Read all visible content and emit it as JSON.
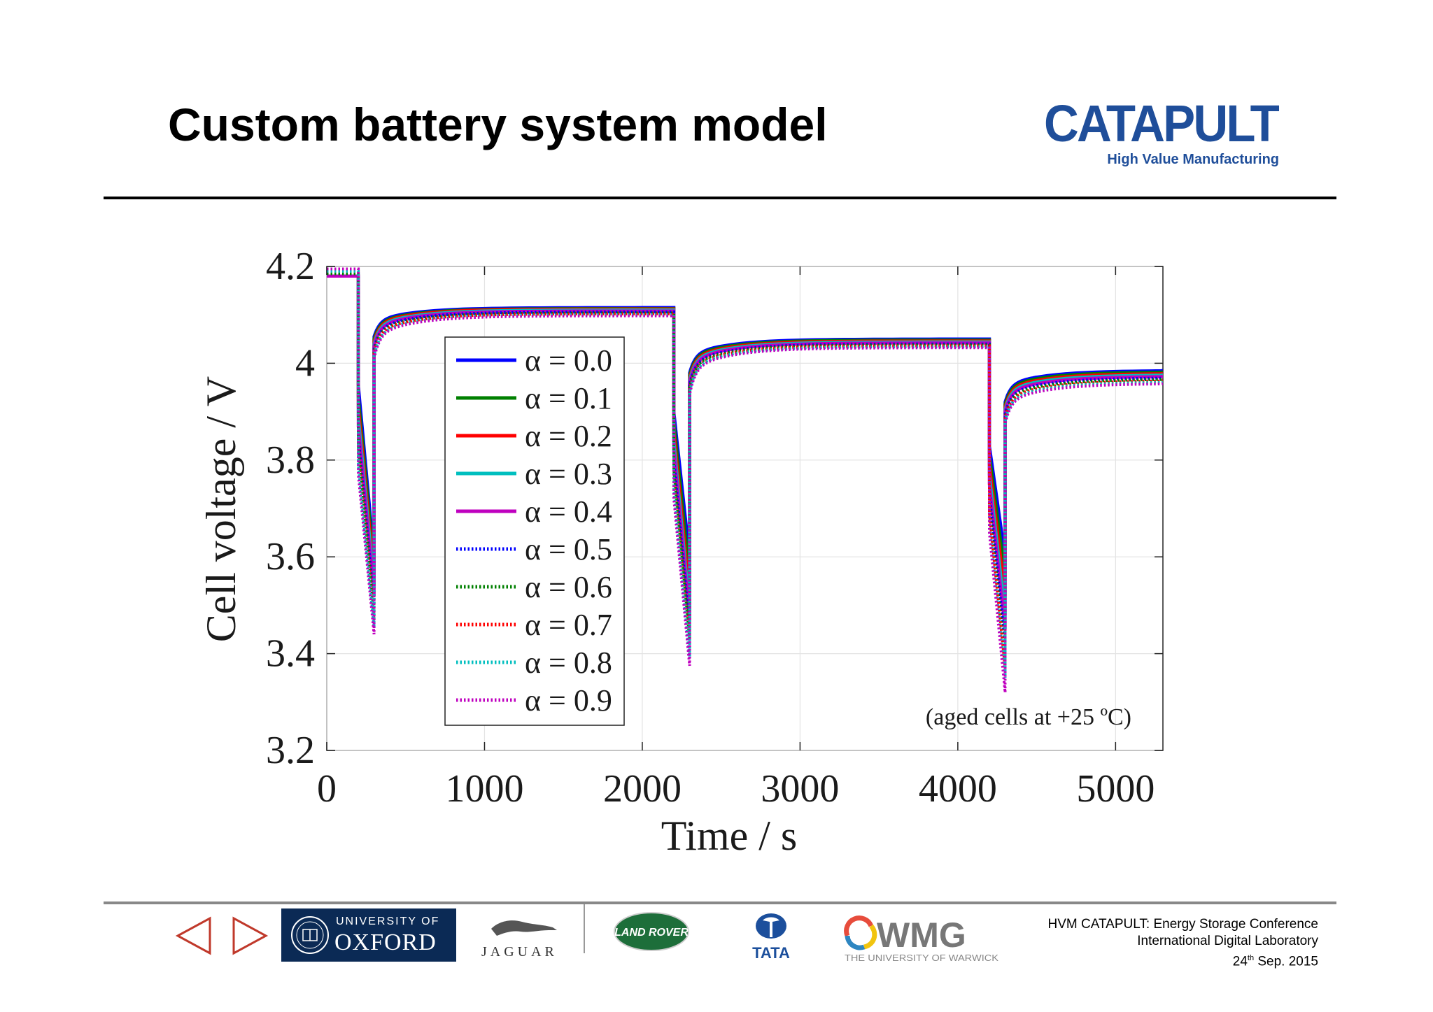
{
  "slide": {
    "title": "Custom battery system model"
  },
  "logos": {
    "catapult_word": "CATAPULT",
    "catapult_tagline": "High Value Manufacturing",
    "oxford_line1": "UNIVERSITY OF",
    "oxford_line2": "OXFORD",
    "jaguar": "JAGUAR",
    "landrover": "LAND ROVER",
    "tata": "TATA",
    "wmg": "WMG",
    "wmg_sub": "THE UNIVERSITY OF WARWICK"
  },
  "footer": {
    "line1": "HVM CATAPULT: Energy Storage Conference",
    "line2": "International Digital Laboratory",
    "date_day": "24",
    "date_suffix": "th",
    "date_rest": " Sep. 2015"
  },
  "colors": {
    "catapult_blue": "#1f4e9a",
    "oxford_navy": "#0b2a55",
    "landrover_green": "#1d6e3a",
    "tata_blue": "#1c4f9c"
  },
  "chart_data": {
    "type": "line",
    "xlabel": "Time / s",
    "ylabel": "Cell voltage / V",
    "xlim": [
      0,
      5300
    ],
    "ylim": [
      3.2,
      4.2
    ],
    "xticks": [
      0,
      1000,
      2000,
      3000,
      4000,
      5000
    ],
    "yticks": [
      3.2,
      3.4,
      3.6,
      3.8,
      4.0,
      4.2
    ],
    "grid": true,
    "legend_position": "upper-middle",
    "annotation": "(aged cells at +25 ºC)",
    "pulses": [
      {
        "start": 200,
        "end": 300
      },
      {
        "start": 2200,
        "end": 2300
      },
      {
        "start": 4200,
        "end": 4300
      }
    ],
    "series": [
      {
        "name": "α = 0.0",
        "color": "#0000ff",
        "dash": "solid",
        "pulse_start": [
          3.955,
          3.9,
          3.83
        ],
        "pulse_end": [
          3.6,
          3.6,
          3.6
        ],
        "rest_start": [
          4.055,
          3.98,
          3.92
        ],
        "rest_end": [
          4.115,
          4.05,
          3.985
        ],
        "idle": 4.18
      },
      {
        "name": "α = 0.1",
        "color": "#008000",
        "dash": "solid",
        "pulse_start": [
          3.93,
          3.88,
          3.81
        ],
        "pulse_end": [
          3.58,
          3.56,
          3.56
        ],
        "rest_start": [
          4.05,
          3.975,
          3.915
        ],
        "rest_end": [
          4.113,
          4.048,
          3.982
        ],
        "idle": 4.18
      },
      {
        "name": "α = 0.2",
        "color": "#ff0000",
        "dash": "solid",
        "pulse_start": [
          3.91,
          3.86,
          3.79
        ],
        "pulse_end": [
          3.56,
          3.52,
          3.52
        ],
        "rest_start": [
          4.045,
          3.97,
          3.91
        ],
        "rest_end": [
          4.112,
          4.046,
          3.979
        ],
        "idle": 4.18
      },
      {
        "name": "α = 0.3",
        "color": "#00bfbf",
        "dash": "solid",
        "pulse_start": [
          3.89,
          3.84,
          3.77
        ],
        "pulse_end": [
          3.54,
          3.49,
          3.48
        ],
        "rest_start": [
          4.04,
          3.965,
          3.905
        ],
        "rest_end": [
          4.11,
          4.044,
          3.976
        ],
        "idle": 4.18
      },
      {
        "name": "α = 0.4",
        "color": "#bf00bf",
        "dash": "solid",
        "pulse_start": [
          3.87,
          3.82,
          3.75
        ],
        "pulse_end": [
          3.52,
          3.47,
          3.45
        ],
        "rest_start": [
          4.035,
          3.96,
          3.9
        ],
        "rest_end": [
          4.108,
          4.042,
          3.973
        ],
        "idle": 4.18
      },
      {
        "name": "α = 0.5",
        "color": "#0000ff",
        "dash": "dotted",
        "pulse_start": [
          3.85,
          3.8,
          3.73
        ],
        "pulse_end": [
          3.5,
          3.45,
          3.42
        ],
        "rest_start": [
          4.03,
          3.955,
          3.895
        ],
        "rest_end": [
          4.106,
          4.04,
          3.97
        ],
        "idle": 4.185
      },
      {
        "name": "α = 0.6",
        "color": "#008000",
        "dash": "dotted",
        "pulse_start": [
          3.83,
          3.78,
          3.71
        ],
        "pulse_end": [
          3.48,
          3.43,
          3.39
        ],
        "rest_start": [
          4.025,
          3.95,
          3.89
        ],
        "rest_end": [
          4.104,
          4.038,
          3.967
        ],
        "idle": 4.185
      },
      {
        "name": "α = 0.7",
        "color": "#ff0000",
        "dash": "dotted",
        "pulse_start": [
          3.81,
          3.76,
          3.69
        ],
        "pulse_end": [
          3.47,
          3.41,
          3.37
        ],
        "rest_start": [
          4.02,
          3.945,
          3.885
        ],
        "rest_end": [
          4.102,
          4.036,
          3.964
        ],
        "idle": 4.19
      },
      {
        "name": "α = 0.8",
        "color": "#00bfbf",
        "dash": "dotted",
        "pulse_start": [
          3.79,
          3.74,
          3.67
        ],
        "pulse_end": [
          3.455,
          3.39,
          3.35
        ],
        "rest_start": [
          4.015,
          3.94,
          3.88
        ],
        "rest_end": [
          4.1,
          4.034,
          3.961
        ],
        "idle": 4.19
      },
      {
        "name": "α = 0.9",
        "color": "#bf00bf",
        "dash": "dotted",
        "pulse_start": [
          3.77,
          3.72,
          3.65
        ],
        "pulse_end": [
          3.44,
          3.375,
          3.32
        ],
        "rest_start": [
          4.01,
          3.935,
          3.875
        ],
        "rest_end": [
          4.098,
          4.032,
          3.958
        ],
        "idle": 4.195
      }
    ]
  }
}
